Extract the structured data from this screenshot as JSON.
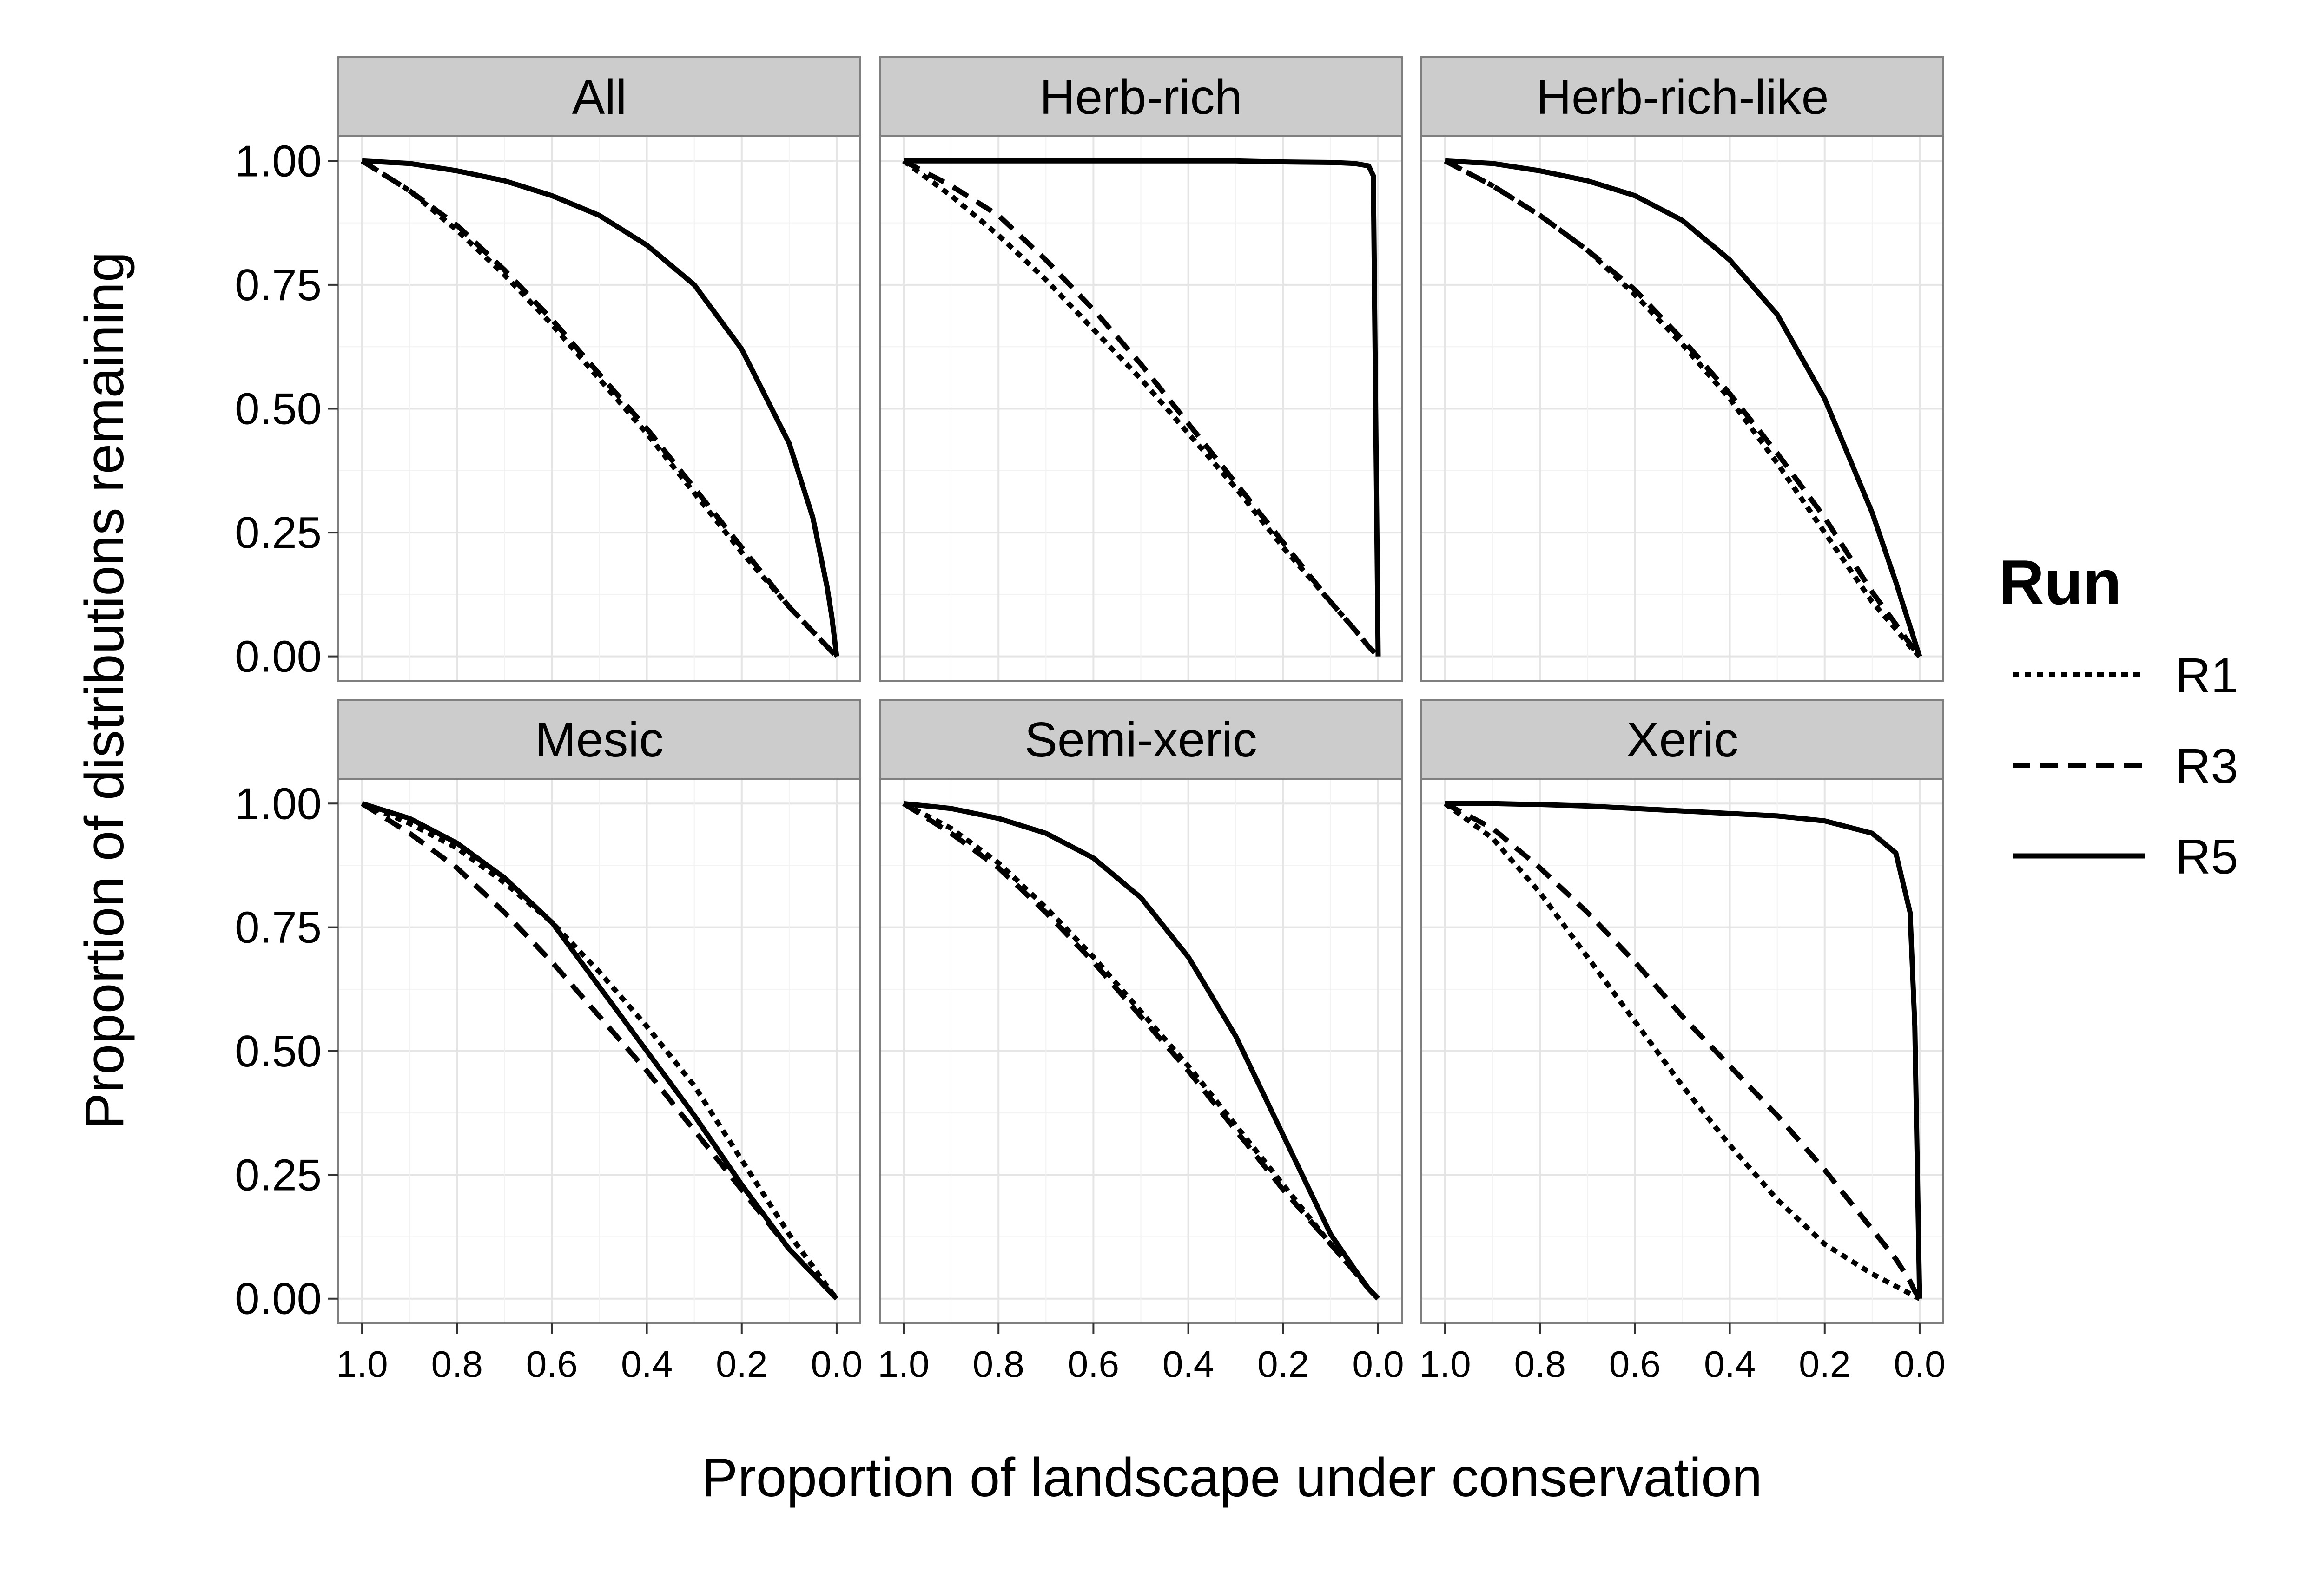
{
  "chart_data": {
    "type": "line",
    "xlabel": "Proportion of landscape under conservation",
    "ylabel": "Proportion of distributions remaining",
    "x_reversed": true,
    "xlim": [
      1.0,
      0.0
    ],
    "ylim": [
      0.0,
      1.0
    ],
    "x_ticks": [
      "1.0",
      "0.8",
      "0.6",
      "0.4",
      "0.2",
      "0.0"
    ],
    "y_ticks": [
      "0.00",
      "0.25",
      "0.50",
      "0.75",
      "1.00"
    ],
    "grid": true,
    "legend": {
      "title": "Run",
      "position": "right",
      "entries": [
        {
          "name": "R1",
          "linestyle": "dotted"
        },
        {
          "name": "R3",
          "linestyle": "dashed"
        },
        {
          "name": "R5",
          "linestyle": "solid"
        }
      ]
    },
    "x": [
      1.0,
      0.9,
      0.8,
      0.7,
      0.6,
      0.5,
      0.4,
      0.3,
      0.2,
      0.1,
      0.05,
      0.02,
      0.01,
      0.0
    ],
    "panels": [
      {
        "title": "All",
        "series": [
          {
            "name": "R1",
            "values": [
              1.0,
              0.94,
              0.86,
              0.77,
              0.67,
              0.56,
              0.45,
              0.33,
              0.21,
              0.1,
              0.05,
              0.02,
              0.01,
              0.0
            ]
          },
          {
            "name": "R3",
            "values": [
              1.0,
              0.94,
              0.87,
              0.78,
              0.68,
              0.57,
              0.46,
              0.34,
              0.22,
              0.1,
              0.05,
              0.02,
              0.01,
              0.0
            ]
          },
          {
            "name": "R5",
            "values": [
              1.0,
              0.995,
              0.98,
              0.96,
              0.93,
              0.89,
              0.83,
              0.75,
              0.62,
              0.43,
              0.28,
              0.14,
              0.08,
              0.0
            ]
          }
        ]
      },
      {
        "title": "Herb-rich",
        "series": [
          {
            "name": "R1",
            "values": [
              1.0,
              0.93,
              0.85,
              0.76,
              0.66,
              0.56,
              0.45,
              0.34,
              0.22,
              0.11,
              0.055,
              0.02,
              0.01,
              0.0
            ]
          },
          {
            "name": "R3",
            "values": [
              1.0,
              0.95,
              0.89,
              0.8,
              0.7,
              0.59,
              0.47,
              0.35,
              0.23,
              0.11,
              0.055,
              0.02,
              0.01,
              0.0
            ]
          },
          {
            "name": "R5",
            "values": [
              1.0,
              1.0,
              1.0,
              1.0,
              1.0,
              1.0,
              1.0,
              1.0,
              0.998,
              0.997,
              0.995,
              0.99,
              0.97,
              0.0
            ]
          }
        ]
      },
      {
        "title": "Herb-rich-like",
        "series": [
          {
            "name": "R1",
            "values": [
              1.0,
              0.95,
              0.89,
              0.82,
              0.73,
              0.63,
              0.52,
              0.39,
              0.25,
              0.11,
              0.055,
              0.02,
              0.01,
              0.0
            ]
          },
          {
            "name": "R3",
            "values": [
              1.0,
              0.95,
              0.89,
              0.82,
              0.74,
              0.64,
              0.53,
              0.41,
              0.28,
              0.13,
              0.065,
              0.025,
              0.012,
              0.0
            ]
          },
          {
            "name": "R5",
            "values": [
              1.0,
              0.995,
              0.98,
              0.96,
              0.93,
              0.88,
              0.8,
              0.69,
              0.52,
              0.29,
              0.15,
              0.06,
              0.03,
              0.0
            ]
          }
        ]
      },
      {
        "title": "Mesic",
        "series": [
          {
            "name": "R1",
            "values": [
              1.0,
              0.96,
              0.91,
              0.84,
              0.76,
              0.66,
              0.55,
              0.43,
              0.28,
              0.13,
              0.065,
              0.025,
              0.012,
              0.0
            ]
          },
          {
            "name": "R3",
            "values": [
              1.0,
              0.94,
              0.87,
              0.78,
              0.68,
              0.57,
              0.46,
              0.34,
              0.22,
              0.1,
              0.05,
              0.02,
              0.01,
              0.0
            ]
          },
          {
            "name": "R5",
            "values": [
              1.0,
              0.97,
              0.92,
              0.85,
              0.76,
              0.63,
              0.5,
              0.37,
              0.23,
              0.1,
              0.05,
              0.02,
              0.01,
              0.0
            ]
          }
        ]
      },
      {
        "title": "Semi-xeric",
        "series": [
          {
            "name": "R1",
            "values": [
              1.0,
              0.95,
              0.88,
              0.79,
              0.69,
              0.58,
              0.47,
              0.35,
              0.23,
              0.11,
              0.055,
              0.02,
              0.01,
              0.0
            ]
          },
          {
            "name": "R3",
            "values": [
              1.0,
              0.94,
              0.87,
              0.78,
              0.68,
              0.57,
              0.46,
              0.34,
              0.22,
              0.11,
              0.055,
              0.02,
              0.01,
              0.0
            ]
          },
          {
            "name": "R5",
            "values": [
              1.0,
              0.99,
              0.97,
              0.94,
              0.89,
              0.81,
              0.69,
              0.53,
              0.33,
              0.13,
              0.06,
              0.02,
              0.01,
              0.0
            ]
          }
        ]
      },
      {
        "title": "Xeric",
        "series": [
          {
            "name": "R1",
            "values": [
              1.0,
              0.93,
              0.82,
              0.69,
              0.56,
              0.43,
              0.31,
              0.2,
              0.11,
              0.05,
              0.025,
              0.01,
              0.005,
              0.0
            ]
          },
          {
            "name": "R3",
            "values": [
              1.0,
              0.95,
              0.87,
              0.78,
              0.68,
              0.57,
              0.47,
              0.37,
              0.26,
              0.14,
              0.08,
              0.035,
              0.015,
              0.0
            ]
          },
          {
            "name": "R5",
            "values": [
              1.0,
              1.0,
              0.998,
              0.995,
              0.99,
              0.985,
              0.98,
              0.975,
              0.965,
              0.94,
              0.9,
              0.78,
              0.55,
              0.0
            ]
          }
        ]
      }
    ]
  }
}
